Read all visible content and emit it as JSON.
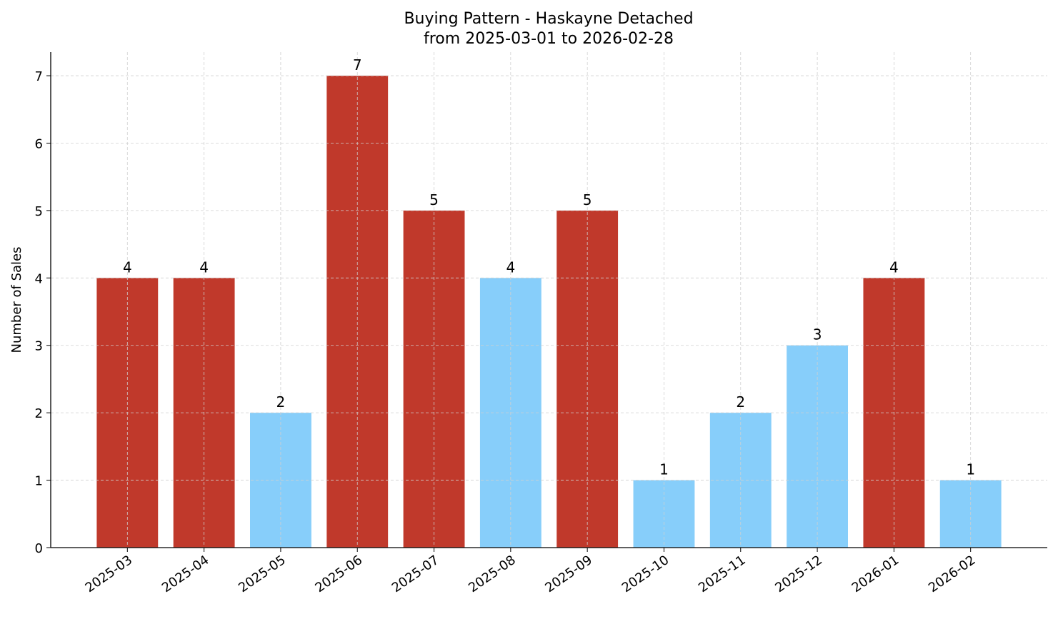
{
  "chart_data": {
    "type": "bar",
    "title": "Buying Pattern - Haskayne Detached",
    "subtitle": "from 2025-03-01 to 2026-02-28",
    "xlabel": "",
    "ylabel": "Number of Sales",
    "categories": [
      "2025-03",
      "2025-04",
      "2025-05",
      "2025-06",
      "2025-07",
      "2025-08",
      "2025-09",
      "2025-10",
      "2025-11",
      "2025-12",
      "2026-01",
      "2026-02"
    ],
    "values": [
      4,
      4,
      2,
      7,
      5,
      4,
      5,
      1,
      2,
      3,
      4,
      1
    ],
    "bar_colors": [
      "#c0392b",
      "#c0392b",
      "#87cefa",
      "#c0392b",
      "#c0392b",
      "#87cefa",
      "#c0392b",
      "#87cefa",
      "#87cefa",
      "#87cefa",
      "#c0392b",
      "#87cefa"
    ],
    "yticks": [
      0,
      1,
      2,
      3,
      4,
      5,
      6,
      7
    ],
    "ylim": [
      0,
      7.35
    ],
    "grid": true,
    "data_labels": true
  }
}
